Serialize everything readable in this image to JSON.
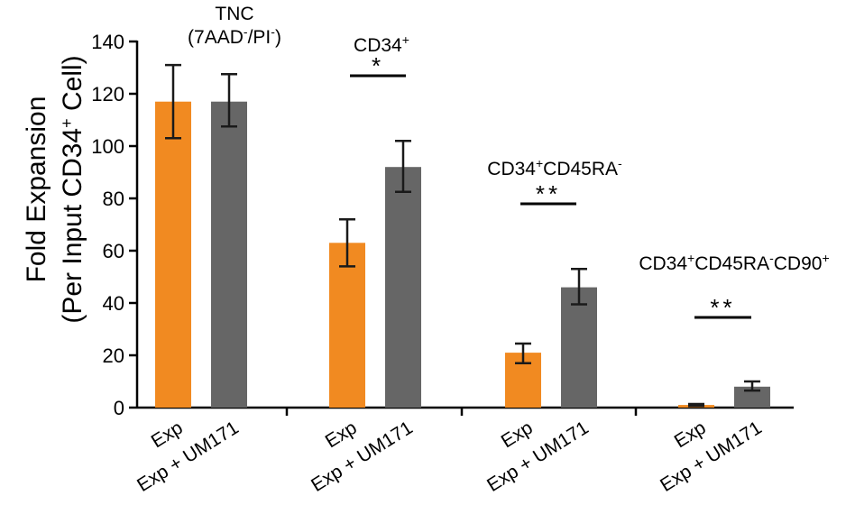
{
  "chart_data": {
    "type": "bar",
    "ylabel_line1": "Fold Expansion",
    "ylabel_line2": "(Per Input CD34",
    "ylabel_sup": "+",
    "ylabel_line2_end": " Cell)",
    "ylim": [
      0,
      140
    ],
    "yticks": [
      0,
      20,
      40,
      60,
      80,
      100,
      120,
      140
    ],
    "colors": {
      "Exp": "#F18A21",
      "Exp + UM171": "#666666"
    },
    "groups": [
      {
        "title_parts": [
          {
            "line": 1,
            "text": "TNC",
            "sup": ""
          },
          {
            "line": 2,
            "text": "(7AAD",
            "sup": "-"
          },
          {
            "line": 2,
            "text": "/PI",
            "sup": "-"
          },
          {
            "line": 2,
            "text": ")",
            "sup": ""
          }
        ],
        "significance": "",
        "bars": [
          {
            "label": "Exp",
            "value": 117,
            "err_low": 103,
            "err_high": 131
          },
          {
            "label": "Exp + UM171",
            "value": 117,
            "err_low": 107.5,
            "err_high": 127.5
          }
        ]
      },
      {
        "title_parts": [
          {
            "line": 1,
            "text": "CD34",
            "sup": "+"
          }
        ],
        "significance": "*",
        "bars": [
          {
            "label": "Exp",
            "value": 63,
            "err_low": 54,
            "err_high": 72
          },
          {
            "label": "Exp + UM171",
            "value": 92,
            "err_low": 82.5,
            "err_high": 102
          }
        ]
      },
      {
        "title_parts": [
          {
            "line": 1,
            "text": "CD34",
            "sup": "+"
          },
          {
            "line": 1,
            "text": "CD45RA",
            "sup": "-"
          }
        ],
        "significance": "**",
        "bars": [
          {
            "label": "Exp",
            "value": 21,
            "err_low": 17,
            "err_high": 24.5
          },
          {
            "label": "Exp + UM171",
            "value": 46,
            "err_low": 39.5,
            "err_high": 53
          }
        ]
      },
      {
        "title_parts": [
          {
            "line": 1,
            "text": "CD34",
            "sup": "+"
          },
          {
            "line": 1,
            "text": "CD45RA",
            "sup": "-"
          },
          {
            "line": 1,
            "text": "CD90",
            "sup": "+"
          }
        ],
        "significance": "**",
        "bars": [
          {
            "label": "Exp",
            "value": 1,
            "err_low": 0.6,
            "err_high": 1.4
          },
          {
            "label": "Exp + UM171",
            "value": 8,
            "err_low": 6.5,
            "err_high": 10
          }
        ]
      }
    ]
  }
}
